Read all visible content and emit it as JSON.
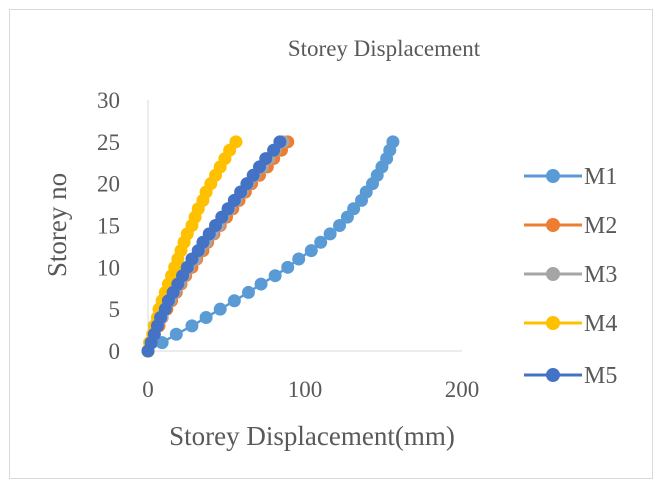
{
  "chart_data": {
    "type": "scatter",
    "title": "Storey Displacement",
    "xlabel": "Storey Displacement(mm)",
    "ylabel": "Storey no",
    "xlim": [
      0,
      200
    ],
    "ylim": [
      0,
      30
    ],
    "xticks": [
      "0",
      "100",
      "200"
    ],
    "yticks": [
      "0",
      "5",
      "10",
      "15",
      "20",
      "25",
      "30"
    ],
    "grid": false,
    "legend": "right",
    "colors": {
      "M1": "#5b9bd5",
      "M2": "#ed7d31",
      "M3": "#a5a5a5",
      "M4": "#ffc000",
      "M5": "#4472c4"
    },
    "series": [
      {
        "name": "M1",
        "y": [
          0,
          1,
          2,
          3,
          4,
          5,
          6,
          7,
          8,
          9,
          10,
          11,
          12,
          13,
          14,
          15,
          16,
          17,
          18,
          19,
          20,
          21,
          22,
          23,
          24,
          25
        ],
        "x": [
          0,
          9,
          18,
          28,
          37,
          46,
          55,
          64,
          72,
          81,
          89,
          96,
          104,
          110,
          116,
          122,
          127,
          131,
          136,
          139,
          143,
          146,
          149,
          152,
          154,
          156
        ]
      },
      {
        "name": "M2",
        "y": [
          0,
          1,
          2,
          3,
          4,
          5,
          6,
          7,
          8,
          9,
          10,
          11,
          12,
          13,
          14,
          15,
          16,
          17,
          18,
          19,
          20,
          21,
          22,
          23,
          24,
          25
        ],
        "x": [
          0,
          2,
          4,
          7,
          9,
          12,
          15,
          18,
          21,
          24,
          28,
          31,
          35,
          38,
          42,
          46,
          50,
          54,
          58,
          62,
          66,
          71,
          76,
          80,
          85,
          89
        ]
      },
      {
        "name": "M3",
        "y": [
          0,
          1,
          2,
          3,
          4,
          5,
          6,
          7,
          8,
          9,
          10,
          11,
          12,
          13,
          14,
          15,
          16,
          17,
          18,
          19,
          20,
          21,
          22,
          23,
          24,
          25
        ],
        "x": [
          0,
          2,
          4,
          6,
          9,
          11,
          14,
          17,
          20,
          23,
          26,
          30,
          33,
          37,
          41,
          45,
          48,
          52,
          56,
          60,
          64,
          68,
          73,
          77,
          81,
          86
        ]
      },
      {
        "name": "M4",
        "y": [
          0,
          1,
          2,
          3,
          4,
          5,
          6,
          7,
          8,
          9,
          10,
          11,
          12,
          13,
          14,
          15,
          16,
          17,
          18,
          19,
          20,
          21,
          22,
          23,
          24,
          25
        ],
        "x": [
          0,
          1,
          3,
          4,
          6,
          7,
          9,
          11,
          13,
          15,
          17,
          19,
          21,
          23,
          25,
          28,
          30,
          32,
          35,
          37,
          40,
          43,
          46,
          49,
          52,
          56
        ]
      },
      {
        "name": "M5",
        "y": [
          0,
          1,
          2,
          3,
          4,
          5,
          6,
          7,
          8,
          9,
          10,
          11,
          12,
          13,
          14,
          15,
          16,
          17,
          18,
          19,
          20,
          21,
          22,
          23,
          24,
          25
        ],
        "x": [
          0,
          2,
          4,
          6,
          8,
          11,
          13,
          16,
          19,
          22,
          25,
          28,
          32,
          35,
          39,
          43,
          47,
          51,
          55,
          59,
          63,
          67,
          71,
          75,
          80,
          84
        ]
      }
    ]
  }
}
